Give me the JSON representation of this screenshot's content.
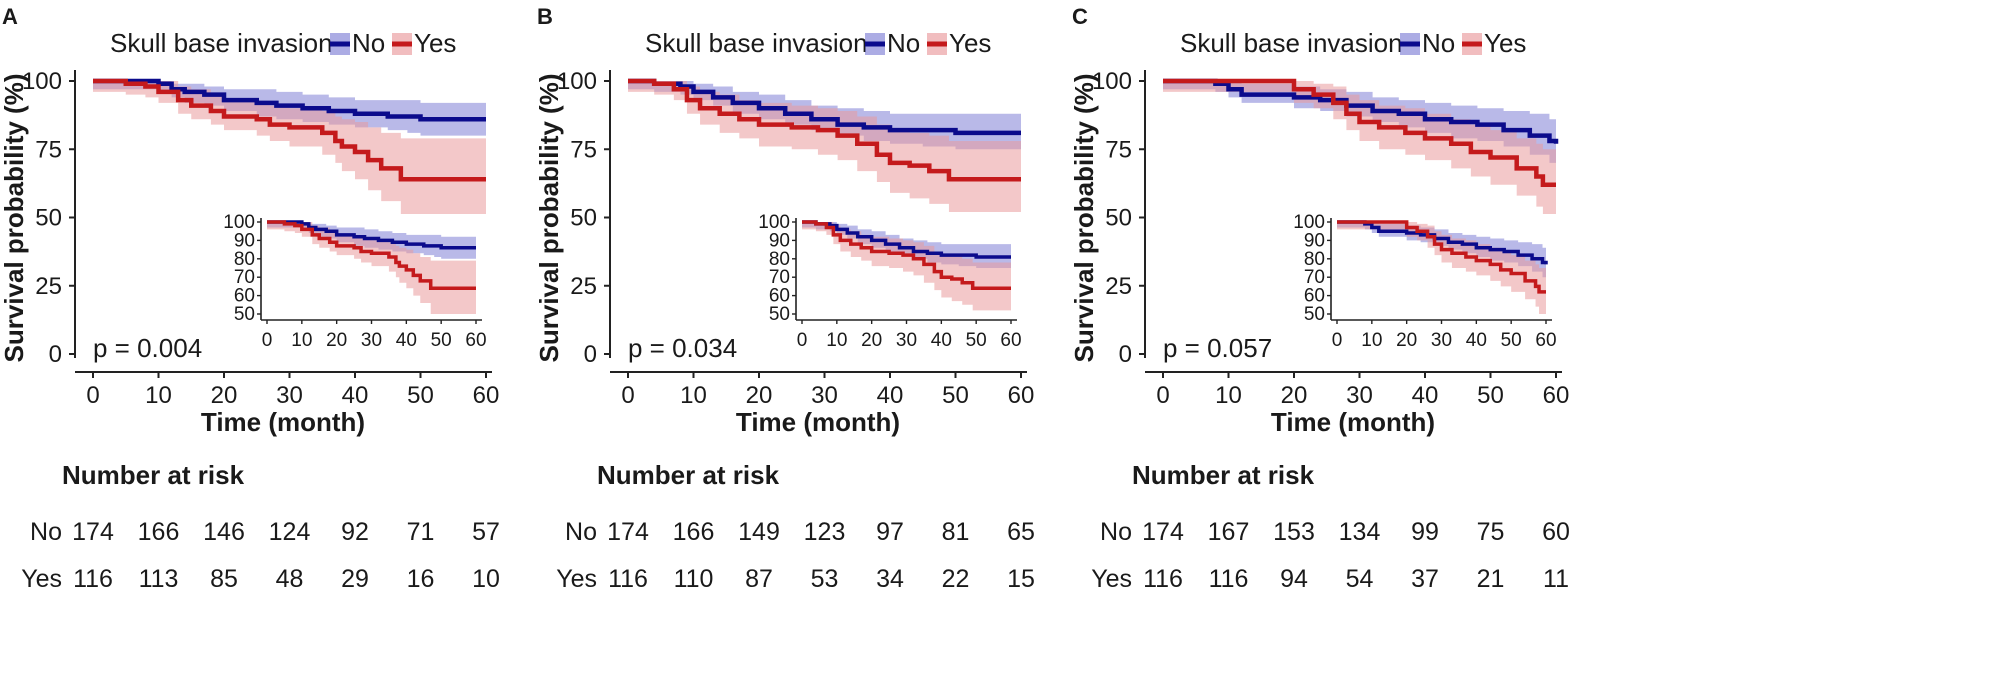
{
  "colors": {
    "no": "#0b0b8c",
    "yes": "#c41a1c",
    "no_band": "#7f7fd6",
    "yes_band": "#ea9a9c"
  },
  "chart_data": [
    {
      "type": "line",
      "panel": "A",
      "legend_title": "Skull base invasion",
      "legend_labels": [
        "No",
        "Yes"
      ],
      "xlabel": "Time (month)",
      "ylabel": "Survival probability (%)",
      "xlim": [
        0,
        60
      ],
      "ylim": [
        0,
        100
      ],
      "xticks": [
        "0",
        "10",
        "20",
        "30",
        "40",
        "50",
        "60"
      ],
      "yticks": [
        "0",
        "25",
        "50",
        "75",
        "100"
      ],
      "pvalue": "p = 0.004",
      "inset": {
        "yticks": [
          "50",
          "60",
          "70",
          "80",
          "90",
          "100"
        ],
        "xticks": [
          "0",
          "10",
          "20",
          "30",
          "40",
          "50",
          "60"
        ],
        "ylim": [
          50,
          100
        ]
      },
      "series": [
        {
          "name": "No",
          "points": [
            [
              0,
              100
            ],
            [
              6,
              100
            ],
            [
              10,
              99
            ],
            [
              12,
              97
            ],
            [
              14,
              96
            ],
            [
              17,
              95
            ],
            [
              20,
              93
            ],
            [
              25,
              92
            ],
            [
              28,
              91
            ],
            [
              32,
              90
            ],
            [
              36,
              89
            ],
            [
              40,
              88
            ],
            [
              45,
              87
            ],
            [
              48,
              87
            ],
            [
              50,
              86
            ],
            [
              60,
              86
            ]
          ],
          "ci_lower": [
            97,
            97,
            96,
            94,
            92,
            91,
            89,
            87,
            86,
            85,
            84,
            83,
            82,
            81,
            80,
            80
          ],
          "ci_upper": [
            100,
            100,
            100,
            99,
            99,
            98,
            97,
            97,
            96,
            95,
            94,
            93,
            93,
            93,
            92,
            92
          ]
        },
        {
          "name": "Yes",
          "points": [
            [
              0,
              100
            ],
            [
              5,
              99
            ],
            [
              8,
              98
            ],
            [
              10,
              96
            ],
            [
              13,
              93
            ],
            [
              15,
              91
            ],
            [
              18,
              89
            ],
            [
              20,
              87
            ],
            [
              25,
              86
            ],
            [
              27,
              84
            ],
            [
              30,
              83
            ],
            [
              35,
              81
            ],
            [
              37,
              78
            ],
            [
              38,
              76
            ],
            [
              40,
              74
            ],
            [
              42,
              71
            ],
            [
              44,
              68
            ],
            [
              47,
              64
            ],
            [
              50,
              64
            ],
            [
              60,
              64
            ]
          ],
          "ci_lower": [
            96,
            95,
            94,
            92,
            88,
            86,
            84,
            82,
            80,
            78,
            76,
            73,
            70,
            67,
            64,
            60,
            56,
            50,
            50,
            50
          ],
          "ci_upper": [
            100,
            100,
            100,
            100,
            98,
            97,
            95,
            93,
            92,
            91,
            90,
            89,
            87,
            86,
            85,
            83,
            81,
            79,
            79,
            79
          ]
        }
      ],
      "risk_table": {
        "title": "Number at risk",
        "times": [
          "0",
          "10",
          "20",
          "30",
          "40",
          "50",
          "60"
        ],
        "rows": [
          {
            "group": "No",
            "values": [
              "174",
              "166",
              "146",
              "124",
              "92",
              "71",
              "57"
            ]
          },
          {
            "group": "Yes",
            "values": [
              "116",
              "113",
              "85",
              "48",
              "29",
              "16",
              "10"
            ]
          }
        ]
      }
    },
    {
      "type": "line",
      "panel": "B",
      "legend_title": "Skull base invasion",
      "legend_labels": [
        "No",
        "Yes"
      ],
      "xlabel": "Time (month)",
      "ylabel": "Survival probability (%)",
      "xlim": [
        0,
        60
      ],
      "ylim": [
        0,
        100
      ],
      "xticks": [
        "0",
        "10",
        "20",
        "30",
        "40",
        "50",
        "60"
      ],
      "yticks": [
        "0",
        "25",
        "50",
        "75",
        "100"
      ],
      "pvalue": "p = 0.034",
      "inset": {
        "yticks": [
          "50",
          "60",
          "70",
          "80",
          "90",
          "100"
        ],
        "xticks": [
          "0",
          "10",
          "20",
          "30",
          "40",
          "50",
          "60"
        ],
        "ylim": [
          50,
          100
        ]
      },
      "series": [
        {
          "name": "No",
          "points": [
            [
              0,
              100
            ],
            [
              4,
              99
            ],
            [
              8,
              98
            ],
            [
              10,
              96
            ],
            [
              13,
              94
            ],
            [
              16,
              92
            ],
            [
              20,
              90
            ],
            [
              24,
              88
            ],
            [
              28,
              86
            ],
            [
              32,
              84
            ],
            [
              36,
              83
            ],
            [
              40,
              82
            ],
            [
              45,
              82
            ],
            [
              50,
              81
            ],
            [
              60,
              81
            ]
          ],
          "ci_lower": [
            97,
            96,
            95,
            93,
            91,
            88,
            86,
            84,
            82,
            80,
            78,
            77,
            76,
            75,
            75
          ],
          "ci_upper": [
            100,
            100,
            100,
            99,
            98,
            96,
            95,
            93,
            91,
            90,
            89,
            88,
            88,
            88,
            88
          ]
        },
        {
          "name": "Yes",
          "points": [
            [
              0,
              100
            ],
            [
              4,
              99
            ],
            [
              7,
              97
            ],
            [
              9,
              93
            ],
            [
              11,
              90
            ],
            [
              14,
              88
            ],
            [
              17,
              86
            ],
            [
              20,
              84
            ],
            [
              25,
              83
            ],
            [
              29,
              82
            ],
            [
              32,
              80
            ],
            [
              35,
              77
            ],
            [
              38,
              73
            ],
            [
              40,
              70
            ],
            [
              43,
              69
            ],
            [
              46,
              67
            ],
            [
              49,
              64
            ],
            [
              52,
              64
            ],
            [
              60,
              64
            ]
          ],
          "ci_lower": [
            96,
            95,
            93,
            88,
            84,
            81,
            79,
            76,
            75,
            73,
            71,
            67,
            63,
            59,
            57,
            55,
            52,
            52,
            52
          ],
          "ci_upper": [
            100,
            100,
            100,
            98,
            96,
            95,
            93,
            92,
            91,
            90,
            89,
            87,
            84,
            82,
            81,
            80,
            78,
            78,
            78
          ]
        }
      ],
      "risk_table": {
        "title": "Number at risk",
        "times": [
          "0",
          "10",
          "20",
          "30",
          "40",
          "50",
          "60"
        ],
        "rows": [
          {
            "group": "No",
            "values": [
              "174",
              "166",
              "149",
              "123",
              "97",
              "81",
              "65"
            ]
          },
          {
            "group": "Yes",
            "values": [
              "116",
              "110",
              "87",
              "53",
              "34",
              "22",
              "15"
            ]
          }
        ]
      }
    },
    {
      "type": "line",
      "panel": "C",
      "legend_title": "Skull base invasion",
      "legend_labels": [
        "No",
        "Yes"
      ],
      "xlabel": "Time (month)",
      "ylabel": "Survival probability (%)",
      "xlim": [
        0,
        60
      ],
      "ylim": [
        0,
        100
      ],
      "xticks": [
        "0",
        "10",
        "20",
        "30",
        "40",
        "50",
        "60"
      ],
      "yticks": [
        "0",
        "25",
        "50",
        "75",
        "100"
      ],
      "pvalue": "p = 0.057",
      "inset": {
        "yticks": [
          "50",
          "60",
          "70",
          "80",
          "90",
          "100"
        ],
        "xticks": [
          "0",
          "10",
          "20",
          "30",
          "40",
          "50",
          "60"
        ],
        "ylim": [
          50,
          100
        ]
      },
      "series": [
        {
          "name": "No",
          "points": [
            [
              0,
              100
            ],
            [
              8,
              99
            ],
            [
              10,
              97
            ],
            [
              12,
              95
            ],
            [
              20,
              94
            ],
            [
              24,
              93
            ],
            [
              28,
              91
            ],
            [
              32,
              89
            ],
            [
              36,
              88
            ],
            [
              40,
              86
            ],
            [
              44,
              85
            ],
            [
              48,
              84
            ],
            [
              52,
              82
            ],
            [
              56,
              80
            ],
            [
              59,
              78
            ],
            [
              60,
              77
            ]
          ],
          "ci_lower": [
            97,
            96,
            94,
            92,
            90,
            89,
            87,
            85,
            83,
            81,
            79,
            78,
            76,
            73,
            70,
            68
          ],
          "ci_upper": [
            100,
            100,
            100,
            99,
            98,
            97,
            96,
            94,
            93,
            92,
            91,
            90,
            89,
            88,
            86,
            86
          ]
        },
        {
          "name": "Yes",
          "points": [
            [
              0,
              100
            ],
            [
              18,
              100
            ],
            [
              20,
              97
            ],
            [
              23,
              95
            ],
            [
              26,
              92
            ],
            [
              28,
              88
            ],
            [
              30,
              85
            ],
            [
              33,
              83
            ],
            [
              37,
              81
            ],
            [
              40,
              79
            ],
            [
              44,
              77
            ],
            [
              47,
              74
            ],
            [
              50,
              72
            ],
            [
              54,
              68
            ],
            [
              57,
              65
            ],
            [
              58,
              62
            ],
            [
              60,
              62
            ]
          ],
          "ci_lower": [
            96,
            96,
            92,
            90,
            86,
            82,
            78,
            75,
            73,
            71,
            68,
            65,
            62,
            58,
            54,
            50,
            50
          ],
          "ci_upper": [
            100,
            100,
            100,
            99,
            98,
            95,
            93,
            91,
            90,
            88,
            86,
            84,
            82,
            79,
            77,
            75,
            75
          ]
        }
      ],
      "risk_table": {
        "title": "Number at risk",
        "times": [
          "0",
          "10",
          "20",
          "30",
          "40",
          "50",
          "60"
        ],
        "rows": [
          {
            "group": "No",
            "values": [
              "174",
              "167",
              "153",
              "134",
              "99",
              "75",
              "60"
            ]
          },
          {
            "group": "Yes",
            "values": [
              "116",
              "116",
              "94",
              "54",
              "37",
              "21",
              "11"
            ]
          }
        ]
      }
    }
  ]
}
